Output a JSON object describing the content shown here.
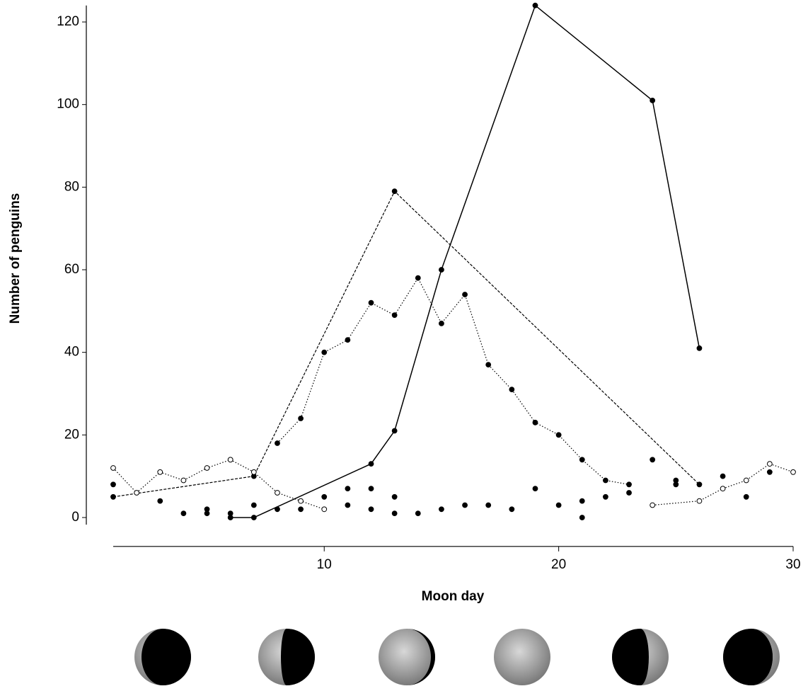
{
  "chart_data": {
    "type": "line",
    "xlabel": "Moon day",
    "ylabel": "Number of penguins",
    "xlim": [
      1,
      30
    ],
    "ylim": [
      -7,
      124
    ],
    "xticks": [
      10,
      20,
      30
    ],
    "yticks": [
      0,
      20,
      40,
      60,
      80,
      100,
      120
    ],
    "grid": false,
    "series": [
      {
        "color": "#000000",
        "line_style": "solid",
        "marker": "filled",
        "x": [
          6,
          7,
          12,
          13,
          15,
          19,
          24,
          26
        ],
        "values": [
          0,
          0,
          13,
          21,
          60,
          124,
          101,
          41
        ]
      },
      {
        "color": "#000000",
        "line_style": "dashed",
        "marker": "filled",
        "x": [
          1,
          7,
          13,
          26
        ],
        "values": [
          5,
          10,
          79,
          8
        ]
      },
      {
        "color": "#000000",
        "line_style": "dotted",
        "marker": "filled",
        "x": [
          8,
          9,
          10,
          11,
          12,
          13,
          14,
          15,
          16,
          17,
          18,
          19,
          20,
          21,
          22,
          23
        ],
        "values": [
          18,
          24,
          40,
          43,
          52,
          49,
          58,
          47,
          54,
          37,
          31,
          23,
          20,
          14,
          9,
          8
        ]
      },
      {
        "color": "#000000",
        "line_style": "dotted",
        "marker": "open",
        "x": [
          1,
          2,
          3,
          4,
          5,
          6,
          7,
          8,
          9,
          10,
          null,
          24,
          26,
          27,
          28,
          29,
          30
        ],
        "values": [
          12,
          6,
          11,
          9,
          12,
          14,
          11,
          6,
          4,
          2,
          null,
          3,
          4,
          7,
          9,
          13,
          11
        ]
      },
      {
        "color": "#000000",
        "line_style": "none",
        "marker": "filled",
        "x": [
          1,
          3,
          4,
          5,
          5,
          6,
          7,
          8,
          9,
          10,
          11,
          11,
          12,
          12,
          13,
          13,
          14,
          15,
          16,
          17,
          18,
          19,
          20,
          21,
          21,
          22,
          23,
          24,
          25,
          25,
          27,
          28,
          29
        ],
        "values": [
          8,
          4,
          1,
          2,
          1,
          1,
          3,
          2,
          2,
          5,
          7,
          3,
          7,
          2,
          5,
          1,
          1,
          2,
          3,
          3,
          2,
          7,
          3,
          4,
          0,
          5,
          6,
          14,
          9,
          8,
          10,
          5,
          11
        ]
      }
    ]
  }
}
